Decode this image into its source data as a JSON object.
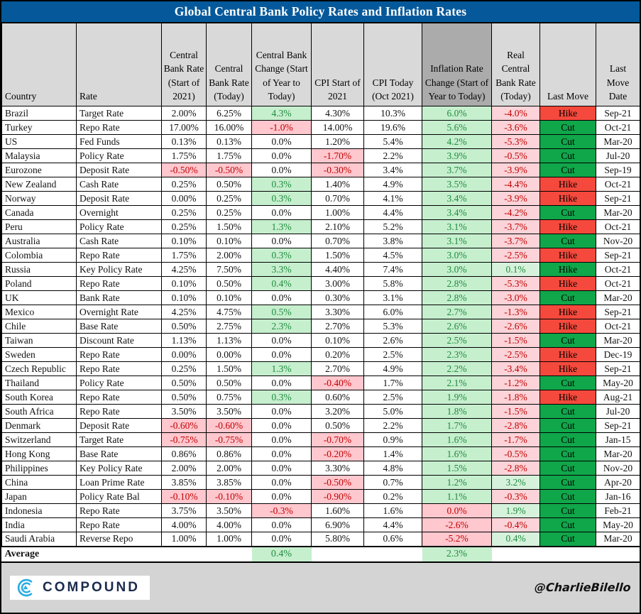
{
  "title": "Global Central Bank Policy Rates and Inflation Rates",
  "columns": [
    "Country",
    "Rate",
    "Central Bank Rate (Start of 2021)",
    "Central Bank Rate (Today)",
    "Central Bank Change (Start of Year to Today)",
    "CPI Start of 2021",
    "CPI Today (Oct 2021)",
    "Inflation Rate Change (Start of Year to Today)",
    "Real Central Bank Rate (Today)",
    "Last Move",
    "Last Move Date"
  ],
  "rows": [
    [
      "Brazil",
      "Target Rate",
      [
        "2.00%",
        "p"
      ],
      [
        "6.25%",
        "p"
      ],
      [
        "4.3%",
        "g"
      ],
      [
        "4.30%",
        "p"
      ],
      [
        "10.3%",
        "p"
      ],
      [
        "6.0%",
        "g"
      ],
      [
        "-4.0%",
        "r"
      ],
      [
        "Hike",
        "red"
      ],
      "Sep-21"
    ],
    [
      "Turkey",
      "Repo Rate",
      [
        "17.00%",
        "p"
      ],
      [
        "16.00%",
        "p"
      ],
      [
        "-1.0%",
        "r"
      ],
      [
        "14.00%",
        "p"
      ],
      [
        "19.6%",
        "p"
      ],
      [
        "5.6%",
        "g"
      ],
      [
        "-3.6%",
        "r"
      ],
      [
        "Cut",
        "green"
      ],
      "Oct-21"
    ],
    [
      "US",
      "Fed Funds",
      [
        "0.13%",
        "p"
      ],
      [
        "0.13%",
        "p"
      ],
      [
        "0.0%",
        "p"
      ],
      [
        "1.20%",
        "p"
      ],
      [
        "5.4%",
        "p"
      ],
      [
        "4.2%",
        "g"
      ],
      [
        "-5.3%",
        "r"
      ],
      [
        "Cut",
        "green"
      ],
      "Mar-20"
    ],
    [
      "Malaysia",
      "Policy Rate",
      [
        "1.75%",
        "p"
      ],
      [
        "1.75%",
        "p"
      ],
      [
        "0.0%",
        "p"
      ],
      [
        "-1.70%",
        "r"
      ],
      [
        "2.2%",
        "p"
      ],
      [
        "3.9%",
        "g"
      ],
      [
        "-0.5%",
        "r"
      ],
      [
        "Cut",
        "green"
      ],
      "Jul-20"
    ],
    [
      "Eurozone",
      "Deposit Rate",
      [
        "-0.50%",
        "r"
      ],
      [
        "-0.50%",
        "r"
      ],
      [
        "0.0%",
        "p"
      ],
      [
        "-0.30%",
        "r"
      ],
      [
        "3.4%",
        "p"
      ],
      [
        "3.7%",
        "g"
      ],
      [
        "-3.9%",
        "r"
      ],
      [
        "Cut",
        "green"
      ],
      "Sep-19"
    ],
    [
      "New Zealand",
      "Cash Rate",
      [
        "0.25%",
        "p"
      ],
      [
        "0.50%",
        "p"
      ],
      [
        "0.3%",
        "g"
      ],
      [
        "1.40%",
        "p"
      ],
      [
        "4.9%",
        "p"
      ],
      [
        "3.5%",
        "g"
      ],
      [
        "-4.4%",
        "r"
      ],
      [
        "Hike",
        "red"
      ],
      "Oct-21"
    ],
    [
      "Norway",
      "Deposit Rate",
      [
        "0.00%",
        "p"
      ],
      [
        "0.25%",
        "p"
      ],
      [
        "0.3%",
        "g"
      ],
      [
        "0.70%",
        "p"
      ],
      [
        "4.1%",
        "p"
      ],
      [
        "3.4%",
        "g"
      ],
      [
        "-3.9%",
        "r"
      ],
      [
        "Hike",
        "red"
      ],
      "Sep-21"
    ],
    [
      "Canada",
      "Overnight",
      [
        "0.25%",
        "p"
      ],
      [
        "0.25%",
        "p"
      ],
      [
        "0.0%",
        "p"
      ],
      [
        "1.00%",
        "p"
      ],
      [
        "4.4%",
        "p"
      ],
      [
        "3.4%",
        "g"
      ],
      [
        "-4.2%",
        "r"
      ],
      [
        "Cut",
        "green"
      ],
      "Mar-20"
    ],
    [
      "Peru",
      "Policy Rate",
      [
        "0.25%",
        "p"
      ],
      [
        "1.50%",
        "p"
      ],
      [
        "1.3%",
        "g"
      ],
      [
        "2.10%",
        "p"
      ],
      [
        "5.2%",
        "p"
      ],
      [
        "3.1%",
        "g"
      ],
      [
        "-3.7%",
        "r"
      ],
      [
        "Hike",
        "red"
      ],
      "Oct-21"
    ],
    [
      "Australia",
      "Cash Rate",
      [
        "0.10%",
        "p"
      ],
      [
        "0.10%",
        "p"
      ],
      [
        "0.0%",
        "p"
      ],
      [
        "0.70%",
        "p"
      ],
      [
        "3.8%",
        "p"
      ],
      [
        "3.1%",
        "g"
      ],
      [
        "-3.7%",
        "r"
      ],
      [
        "Cut",
        "green"
      ],
      "Nov-20"
    ],
    [
      "Colombia",
      "Repo Rate",
      [
        "1.75%",
        "p"
      ],
      [
        "2.00%",
        "p"
      ],
      [
        "0.3%",
        "g"
      ],
      [
        "1.50%",
        "p"
      ],
      [
        "4.5%",
        "p"
      ],
      [
        "3.0%",
        "g"
      ],
      [
        "-2.5%",
        "r"
      ],
      [
        "Hike",
        "red"
      ],
      "Sep-21"
    ],
    [
      "Russia",
      "Key Policy Rate",
      [
        "4.25%",
        "p"
      ],
      [
        "7.50%",
        "p"
      ],
      [
        "3.3%",
        "g"
      ],
      [
        "4.40%",
        "p"
      ],
      [
        "7.4%",
        "p"
      ],
      [
        "3.0%",
        "g"
      ],
      [
        "0.1%",
        "g"
      ],
      [
        "Hike",
        "green"
      ],
      "Oct-21"
    ],
    [
      "Poland",
      "Repo Rate",
      [
        "0.10%",
        "p"
      ],
      [
        "0.50%",
        "p"
      ],
      [
        "0.4%",
        "g"
      ],
      [
        "3.00%",
        "p"
      ],
      [
        "5.8%",
        "p"
      ],
      [
        "2.8%",
        "g"
      ],
      [
        "-5.3%",
        "r"
      ],
      [
        "Hike",
        "red"
      ],
      "Oct-21"
    ],
    [
      "UK",
      "Bank Rate",
      [
        "0.10%",
        "p"
      ],
      [
        "0.10%",
        "p"
      ],
      [
        "0.0%",
        "p"
      ],
      [
        "0.30%",
        "p"
      ],
      [
        "3.1%",
        "p"
      ],
      [
        "2.8%",
        "g"
      ],
      [
        "-3.0%",
        "r"
      ],
      [
        "Cut",
        "green"
      ],
      "Mar-20"
    ],
    [
      "Mexico",
      "Overnight Rate",
      [
        "4.25%",
        "p"
      ],
      [
        "4.75%",
        "p"
      ],
      [
        "0.5%",
        "g"
      ],
      [
        "3.30%",
        "p"
      ],
      [
        "6.0%",
        "p"
      ],
      [
        "2.7%",
        "g"
      ],
      [
        "-1.3%",
        "r"
      ],
      [
        "Hike",
        "red"
      ],
      "Sep-21"
    ],
    [
      "Chile",
      "Base Rate",
      [
        "0.50%",
        "p"
      ],
      [
        "2.75%",
        "p"
      ],
      [
        "2.3%",
        "g"
      ],
      [
        "2.70%",
        "p"
      ],
      [
        "5.3%",
        "p"
      ],
      [
        "2.6%",
        "g"
      ],
      [
        "-2.6%",
        "r"
      ],
      [
        "Hike",
        "red"
      ],
      "Oct-21"
    ],
    [
      "Taiwan",
      "Discount Rate",
      [
        "1.13%",
        "p"
      ],
      [
        "1.13%",
        "p"
      ],
      [
        "0.0%",
        "p"
      ],
      [
        "0.10%",
        "p"
      ],
      [
        "2.6%",
        "p"
      ],
      [
        "2.5%",
        "g"
      ],
      [
        "-1.5%",
        "r"
      ],
      [
        "Cut",
        "green"
      ],
      "Mar-20"
    ],
    [
      "Sweden",
      "Repo Rate",
      [
        "0.00%",
        "p"
      ],
      [
        "0.00%",
        "p"
      ],
      [
        "0.0%",
        "p"
      ],
      [
        "0.20%",
        "p"
      ],
      [
        "2.5%",
        "p"
      ],
      [
        "2.3%",
        "g"
      ],
      [
        "-2.5%",
        "r"
      ],
      [
        "Hike",
        "red"
      ],
      "Dec-19"
    ],
    [
      "Czech Republic",
      "Repo Rate",
      [
        "0.25%",
        "p"
      ],
      [
        "1.50%",
        "p"
      ],
      [
        "1.3%",
        "g"
      ],
      [
        "2.70%",
        "p"
      ],
      [
        "4.9%",
        "p"
      ],
      [
        "2.2%",
        "g"
      ],
      [
        "-3.4%",
        "r"
      ],
      [
        "Hike",
        "red"
      ],
      "Sep-21"
    ],
    [
      "Thailand",
      "Policy Rate",
      [
        "0.50%",
        "p"
      ],
      [
        "0.50%",
        "p"
      ],
      [
        "0.0%",
        "p"
      ],
      [
        "-0.40%",
        "r"
      ],
      [
        "1.7%",
        "p"
      ],
      [
        "2.1%",
        "g"
      ],
      [
        "-1.2%",
        "r"
      ],
      [
        "Cut",
        "green"
      ],
      "May-20"
    ],
    [
      "South Korea",
      "Repo Rate",
      [
        "0.50%",
        "p"
      ],
      [
        "0.75%",
        "p"
      ],
      [
        "0.3%",
        "g"
      ],
      [
        "0.60%",
        "p"
      ],
      [
        "2.5%",
        "p"
      ],
      [
        "1.9%",
        "g"
      ],
      [
        "-1.8%",
        "r"
      ],
      [
        "Hike",
        "red"
      ],
      "Aug-21"
    ],
    [
      "South Africa",
      "Repo Rate",
      [
        "3.50%",
        "p"
      ],
      [
        "3.50%",
        "p"
      ],
      [
        "0.0%",
        "p"
      ],
      [
        "3.20%",
        "p"
      ],
      [
        "5.0%",
        "p"
      ],
      [
        "1.8%",
        "g"
      ],
      [
        "-1.5%",
        "r"
      ],
      [
        "Cut",
        "green"
      ],
      "Jul-20"
    ],
    [
      "Denmark",
      "Deposit Rate",
      [
        "-0.60%",
        "r"
      ],
      [
        "-0.60%",
        "r"
      ],
      [
        "0.0%",
        "p"
      ],
      [
        "0.50%",
        "p"
      ],
      [
        "2.2%",
        "p"
      ],
      [
        "1.7%",
        "g"
      ],
      [
        "-2.8%",
        "r"
      ],
      [
        "Cut",
        "green"
      ],
      "Sep-21"
    ],
    [
      "Switzerland",
      "Target Rate",
      [
        "-0.75%",
        "r"
      ],
      [
        "-0.75%",
        "r"
      ],
      [
        "0.0%",
        "p"
      ],
      [
        "-0.70%",
        "r"
      ],
      [
        "0.9%",
        "p"
      ],
      [
        "1.6%",
        "g"
      ],
      [
        "-1.7%",
        "r"
      ],
      [
        "Cut",
        "green"
      ],
      "Jan-15"
    ],
    [
      "Hong Kong",
      "Base Rate",
      [
        "0.86%",
        "p"
      ],
      [
        "0.86%",
        "p"
      ],
      [
        "0.0%",
        "p"
      ],
      [
        "-0.20%",
        "r"
      ],
      [
        "1.4%",
        "p"
      ],
      [
        "1.6%",
        "g"
      ],
      [
        "-0.5%",
        "r"
      ],
      [
        "Cut",
        "green"
      ],
      "Mar-20"
    ],
    [
      "Philippines",
      "Key Policy Rate",
      [
        "2.00%",
        "p"
      ],
      [
        "2.00%",
        "p"
      ],
      [
        "0.0%",
        "p"
      ],
      [
        "3.30%",
        "p"
      ],
      [
        "4.8%",
        "p"
      ],
      [
        "1.5%",
        "g"
      ],
      [
        "-2.8%",
        "r"
      ],
      [
        "Cut",
        "green"
      ],
      "Nov-20"
    ],
    [
      "China",
      "Loan Prime Rate",
      [
        "3.85%",
        "p"
      ],
      [
        "3.85%",
        "p"
      ],
      [
        "0.0%",
        "p"
      ],
      [
        "-0.50%",
        "r"
      ],
      [
        "0.7%",
        "p"
      ],
      [
        "1.2%",
        "g"
      ],
      [
        "3.2%",
        "g"
      ],
      [
        "Cut",
        "green"
      ],
      "Apr-20"
    ],
    [
      "Japan",
      "Policy Rate Bal",
      [
        "-0.10%",
        "r"
      ],
      [
        "-0.10%",
        "r"
      ],
      [
        "0.0%",
        "p"
      ],
      [
        "-0.90%",
        "r"
      ],
      [
        "0.2%",
        "p"
      ],
      [
        "1.1%",
        "g"
      ],
      [
        "-0.3%",
        "r"
      ],
      [
        "Cut",
        "green"
      ],
      "Jan-16"
    ],
    [
      "Indonesia",
      "Repo Rate",
      [
        "3.75%",
        "p"
      ],
      [
        "3.50%",
        "p"
      ],
      [
        "-0.3%",
        "r"
      ],
      [
        "1.60%",
        "p"
      ],
      [
        "1.6%",
        "p"
      ],
      [
        "0.0%",
        "r"
      ],
      [
        "1.9%",
        "g"
      ],
      [
        "Cut",
        "green"
      ],
      "Feb-21"
    ],
    [
      "India",
      "Repo Rate",
      [
        "4.00%",
        "p"
      ],
      [
        "4.00%",
        "p"
      ],
      [
        "0.0%",
        "p"
      ],
      [
        "6.90%",
        "p"
      ],
      [
        "4.4%",
        "p"
      ],
      [
        "-2.6%",
        "r"
      ],
      [
        "-0.4%",
        "r"
      ],
      [
        "Cut",
        "green"
      ],
      "May-20"
    ],
    [
      "Saudi Arabia",
      "Reverse Repo",
      [
        "1.00%",
        "p"
      ],
      [
        "1.00%",
        "p"
      ],
      [
        "0.0%",
        "p"
      ],
      [
        "5.80%",
        "p"
      ],
      [
        "0.6%",
        "p"
      ],
      [
        "-5.2%",
        "r"
      ],
      [
        "0.4%",
        "g"
      ],
      [
        "Cut",
        "green"
      ],
      "Mar-20"
    ]
  ],
  "average": {
    "label": "Average",
    "cb_change": "0.4%",
    "infl_change": "2.3%"
  },
  "footer": {
    "brand": "COMPOUND",
    "credit": "@CharlieBilello"
  },
  "colors": {
    "title_bar": "#05599a",
    "header_bg": "#D9D9D9",
    "header_dark_bg": "#ABABAB",
    "positive_bg": "#C6EFCE",
    "positive_text": "#1f8b3d",
    "negative_bg": "#FFC7CE",
    "negative_text": "#c00000",
    "hike_bg": "#F4493C",
    "cut_bg": "#10A64A",
    "footer_bg": "#D4D4D4",
    "brand_blue": "#29ABE2",
    "brand_navy": "#1B2B4D"
  }
}
